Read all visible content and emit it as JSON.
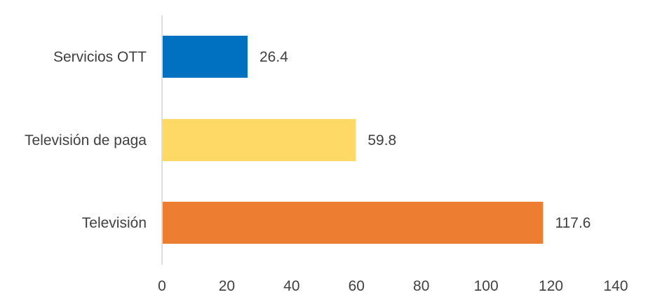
{
  "chart_data": {
    "type": "bar",
    "orientation": "horizontal",
    "categories": [
      "Servicios OTT",
      "Televisión de paga",
      "Televisión"
    ],
    "values": [
      26.4,
      59.8,
      117.6
    ],
    "value_labels": [
      "26.4",
      "59.8",
      "117.6"
    ],
    "colors": [
      "#0070C0",
      "#FFD966",
      "#ED7D31"
    ],
    "xlim": [
      0,
      140
    ],
    "xticks": [
      0,
      20,
      40,
      60,
      80,
      100,
      120,
      140
    ],
    "title": "",
    "xlabel": "",
    "ylabel": "",
    "grid": false,
    "legend": false
  }
}
